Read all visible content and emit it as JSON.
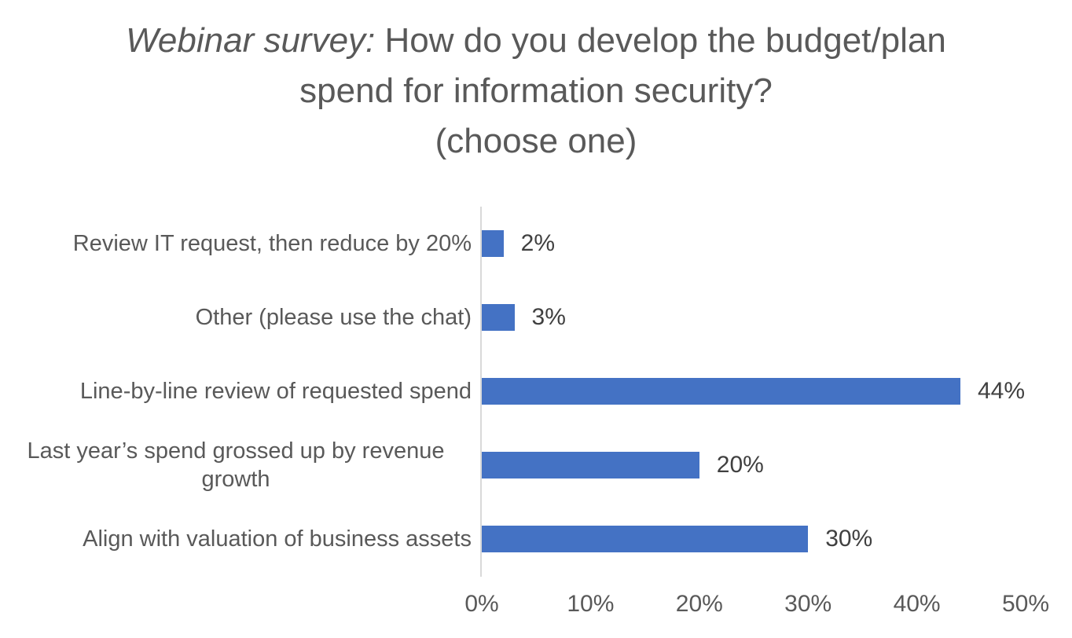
{
  "chart_data": {
    "type": "bar",
    "orientation": "horizontal",
    "title_italic": "Webinar survey:",
    "title_regular": " How do you develop the budget/plan spend for information security?",
    "title_suffix": "(choose one)",
    "categories": [
      "Review IT request, then reduce by 20%",
      "Other (please use the chat)",
      "Line-by-line review of requested spend",
      "Last year’s spend grossed up by revenue growth",
      "Align with valuation of business assets"
    ],
    "values": [
      2,
      3,
      44,
      20,
      30
    ],
    "value_labels": [
      "2%",
      "3%",
      "44%",
      "20%",
      "30%"
    ],
    "x_ticks": [
      "0%",
      "10%",
      "20%",
      "30%",
      "40%",
      "50%"
    ],
    "xlim": [
      0,
      50
    ],
    "grid": false,
    "legend": false,
    "colors": {
      "bar": "#4472C4",
      "axis_line": "#D9D9D9",
      "label_text": "#595959",
      "value_text": "#404040",
      "title_text": "#595959",
      "tick_text": "#595959"
    }
  }
}
